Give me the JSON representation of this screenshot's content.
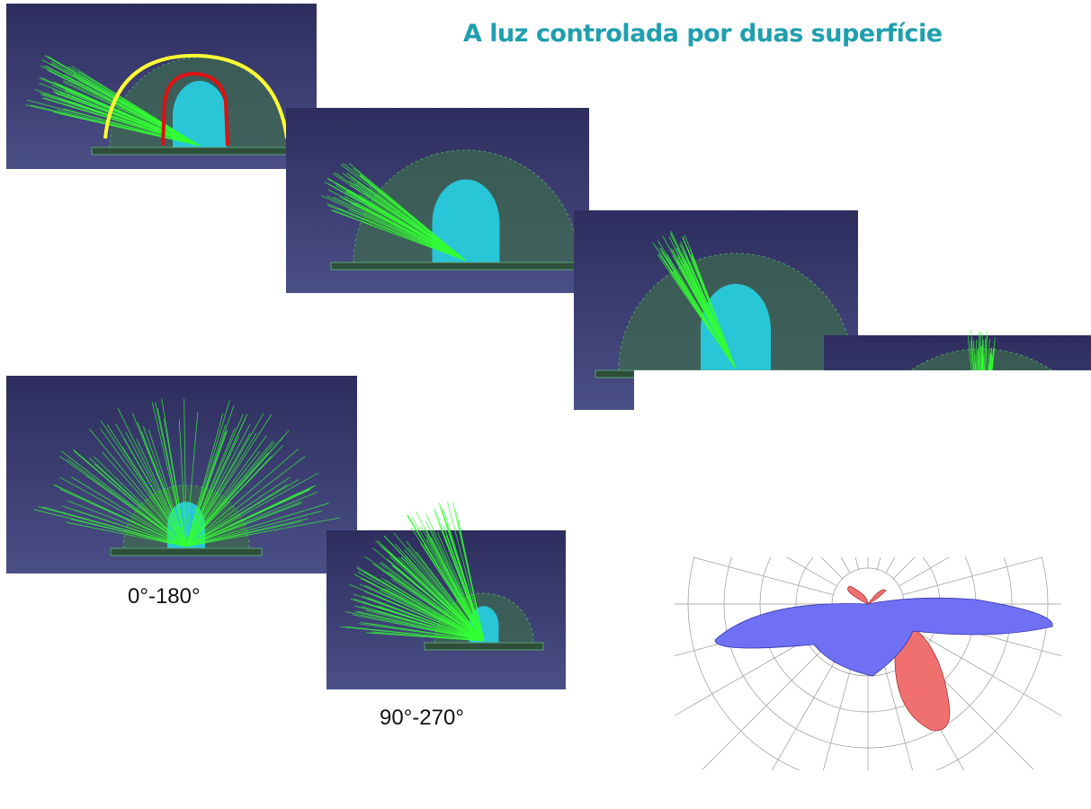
{
  "title": "A luz controlada por duas superfície",
  "captions": [
    "0°-180°",
    "90°-270°"
  ]
}
